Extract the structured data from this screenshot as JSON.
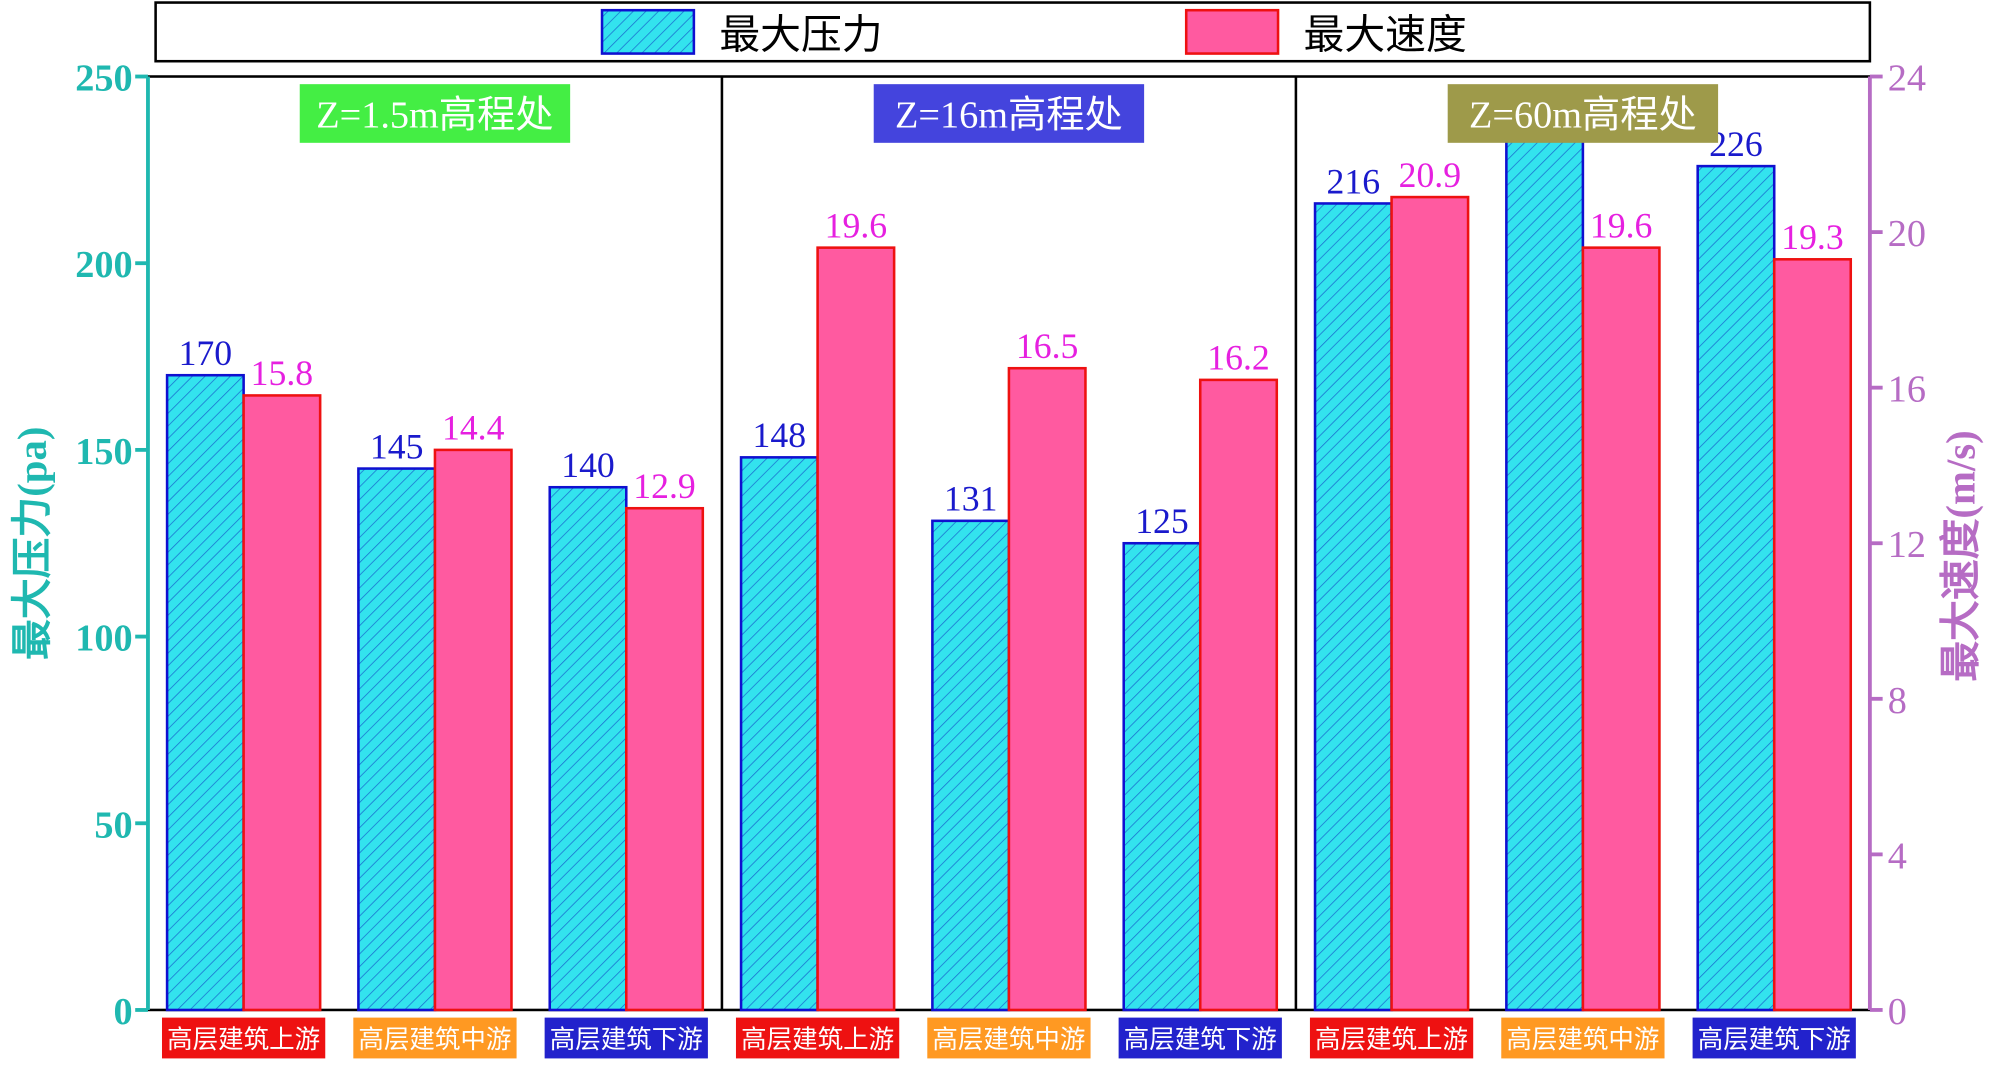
{
  "legend": {
    "pressure_label": "最大压力",
    "speed_label": "最大速度"
  },
  "colors": {
    "pressure_fill": "#33e3ee",
    "pressure_stroke": "#1010d0",
    "speed_fill": "#ff5aa0",
    "speed_stroke": "#ee1111",
    "left_axis": "#1fb8b0",
    "right_axis": "#b66cc4",
    "pressure_label": "#1a1acc",
    "speed_label": "#e620e0"
  },
  "chart_data": {
    "type": "bar",
    "title": "",
    "ylabel": "最大压力(pa)",
    "y2label": "最大速度(m/s)",
    "ylim": [
      0,
      250
    ],
    "y2lim": [
      0,
      24
    ],
    "yticks": [
      0,
      50,
      100,
      150,
      200,
      250
    ],
    "y2ticks": [
      0,
      4,
      8,
      12,
      16,
      20,
      24
    ],
    "legend_position": "top",
    "groups": [
      {
        "label": "Z=1.5m高程处",
        "label_color": "#44ee44",
        "categories": [
          {
            "label": "高层建筑上游",
            "color": "#ee1111",
            "pressure": 170,
            "speed": 15.8
          },
          {
            "label": "高层建筑中游",
            "color": "#ff9922",
            "pressure": 145,
            "speed": 14.4
          },
          {
            "label": "高层建筑下游",
            "color": "#2222cc",
            "pressure": 140,
            "speed": 12.9
          }
        ]
      },
      {
        "label": "Z=16m高程处",
        "label_color": "#4444dd",
        "categories": [
          {
            "label": "高层建筑上游",
            "color": "#ee1111",
            "pressure": 148,
            "speed": 19.6
          },
          {
            "label": "高层建筑中游",
            "color": "#ff9922",
            "pressure": 131,
            "speed": 16.5
          },
          {
            "label": "高层建筑下游",
            "color": "#2222cc",
            "pressure": 125,
            "speed": 16.2
          }
        ]
      },
      {
        "label": "Z=60m高程处",
        "label_color": "#9e9a4a",
        "categories": [
          {
            "label": "高层建筑上游",
            "color": "#ee1111",
            "pressure": 216,
            "speed": 20.9
          },
          {
            "label": "高层建筑中游",
            "color": "#ff9922",
            "pressure": 233,
            "speed": 19.6
          },
          {
            "label": "高层建筑下游",
            "color": "#2222cc",
            "pressure": 226,
            "speed": 19.3
          }
        ]
      }
    ]
  }
}
